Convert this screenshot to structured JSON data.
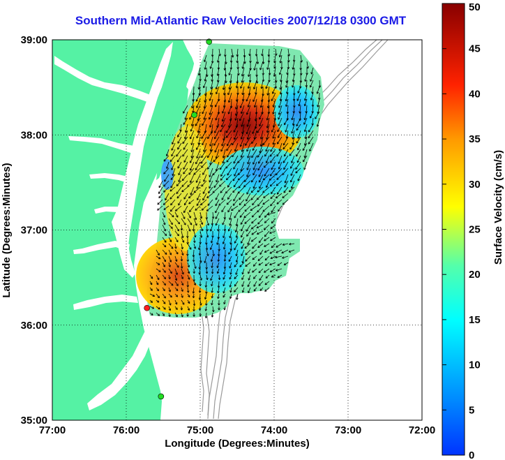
{
  "title": "Southern Mid-Atlantic Raw Velocities 2007/12/18 0300 GMT",
  "x_axis": {
    "label": "Longitude (Degrees:Minutes)",
    "ticks": [
      "77:00",
      "76:00",
      "75:00",
      "74:00",
      "73:00",
      "72:00"
    ]
  },
  "y_axis": {
    "label": "Latitude (Degrees:Minutes)",
    "ticks": [
      "39:00",
      "38:00",
      "37:00",
      "36:00",
      "35:00"
    ]
  },
  "colorbar": {
    "label": "Surface Velocity (cm/s)",
    "ticks": [
      "50",
      "45",
      "40",
      "35",
      "30",
      "25",
      "20",
      "15",
      "10",
      "5",
      "0"
    ],
    "min": 0,
    "max": 50,
    "colormap": "jet"
  },
  "colors": {
    "land": "#55f2a4",
    "water": "#ffffff",
    "bathymetry": "#9a9a9a",
    "title": "#1a1ae6",
    "site_marker_green": "#22dd22",
    "site_marker_red": "#ff2020"
  },
  "map_extent": {
    "lon": [
      -77,
      -72
    ],
    "lat": [
      35,
      39
    ]
  },
  "sites": [
    {
      "type": "green",
      "lon": -74.88,
      "lat": 38.98
    },
    {
      "type": "green",
      "lon": -75.08,
      "lat": 38.21
    },
    {
      "type": "red",
      "lon": -75.72,
      "lat": 36.18
    },
    {
      "type": "green",
      "lon": -75.53,
      "lat": 35.25
    }
  ]
}
